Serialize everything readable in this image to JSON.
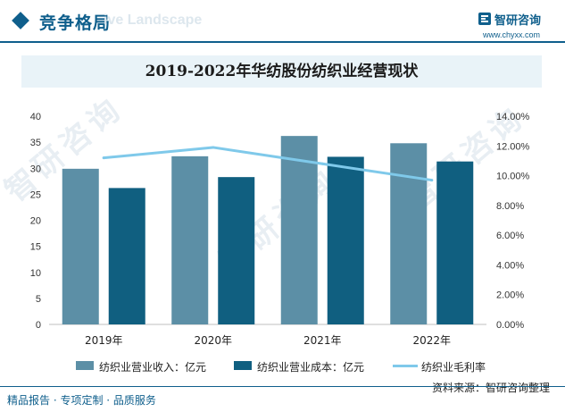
{
  "header": {
    "section_title": "竞争格局",
    "section_subtitle": "ive Landscape",
    "brand_name": "智研咨询",
    "brand_url": "www.chyxx.com"
  },
  "watermark": "智研咨询",
  "chart_data": {
    "type": "bar",
    "title": "2019-2022年华纺股份纺织业经营现状",
    "categories": [
      "2019年",
      "2020年",
      "2021年",
      "2022年"
    ],
    "series": [
      {
        "name": "纺织业营业收入：亿元",
        "type": "bar",
        "axis": "left",
        "color": "#5c8fa6",
        "values": [
          29.9,
          32.3,
          36.2,
          34.8
        ]
      },
      {
        "name": "纺织业营业成本：亿元",
        "type": "bar",
        "axis": "left",
        "color": "#105f80",
        "values": [
          26.2,
          28.3,
          32.2,
          31.3
        ]
      },
      {
        "name": "纺织业毛利率",
        "type": "line",
        "axis": "right",
        "color": "#7fc9ea",
        "values": [
          11.2,
          11.9,
          10.8,
          9.7
        ]
      }
    ],
    "y_left": {
      "min": 0,
      "max": 40,
      "step": 5,
      "ticks": [
        "0",
        "5",
        "10",
        "15",
        "20",
        "25",
        "30",
        "35",
        "40"
      ]
    },
    "y_right": {
      "min": 0,
      "max": 14,
      "step": 2,
      "ticks": [
        "0.00%",
        "2.00%",
        "4.00%",
        "6.00%",
        "8.00%",
        "10.00%",
        "12.00%",
        "14.00%"
      ]
    },
    "grid": false,
    "legend": "bottom"
  },
  "source": "资料来源：智研咨询整理",
  "footer": "精品报告 · 专项定制 · 品质服务"
}
